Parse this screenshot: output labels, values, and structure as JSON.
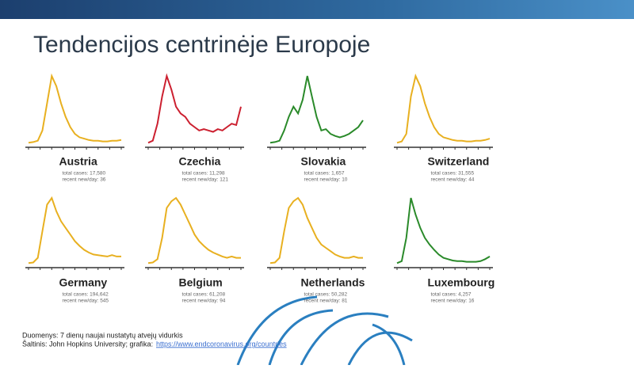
{
  "title": "Tendencijos centrinėje Europoje",
  "panels": [
    {
      "name": "Austria",
      "total_cases": "total cases: 17,580",
      "recent": "recent new/day: 36",
      "color": "#e8b020",
      "values": [
        2,
        3,
        5,
        20,
        60,
        100,
        85,
        60,
        40,
        25,
        15,
        10,
        8,
        6,
        5,
        5,
        4,
        4,
        5,
        5,
        6
      ]
    },
    {
      "name": "Czechia",
      "total_cases": "total cases: 11,298",
      "recent": "recent new/day: 121",
      "color": "#cc2030",
      "values": [
        2,
        5,
        30,
        70,
        100,
        80,
        55,
        45,
        40,
        30,
        25,
        20,
        22,
        20,
        18,
        22,
        20,
        25,
        30,
        28,
        55
      ]
    },
    {
      "name": "Slovakia",
      "total_cases": "total cases: 1,657",
      "recent": "recent new/day: 10",
      "color": "#2a8a2a",
      "values": [
        2,
        3,
        5,
        20,
        40,
        55,
        45,
        65,
        100,
        70,
        40,
        20,
        22,
        15,
        12,
        10,
        12,
        15,
        20,
        25,
        35
      ]
    },
    {
      "name": "Switzerland",
      "total_cases": "total cases: 31,555",
      "recent": "recent new/day: 44",
      "color": "#e8b020",
      "values": [
        2,
        4,
        15,
        70,
        100,
        85,
        60,
        40,
        25,
        15,
        10,
        8,
        6,
        5,
        5,
        4,
        4,
        5,
        5,
        6,
        8
      ]
    },
    {
      "name": "Germany",
      "total_cases": "total cases: 194,642",
      "recent": "recent new/day: 545",
      "color": "#e8b020",
      "values": [
        2,
        3,
        10,
        50,
        90,
        100,
        80,
        65,
        55,
        45,
        35,
        28,
        22,
        18,
        15,
        14,
        13,
        12,
        14,
        12,
        12
      ]
    },
    {
      "name": "Belgium",
      "total_cases": "total cases: 61,208",
      "recent": "recent new/day: 94",
      "color": "#e8b020",
      "values": [
        2,
        3,
        8,
        40,
        85,
        95,
        100,
        90,
        75,
        60,
        45,
        35,
        28,
        22,
        18,
        15,
        12,
        10,
        12,
        10,
        10
      ]
    },
    {
      "name": "Netherlands",
      "total_cases": "total cases: 50,282",
      "recent": "recent new/day: 81",
      "color": "#e8b020",
      "values": [
        2,
        3,
        10,
        50,
        85,
        95,
        100,
        90,
        70,
        55,
        40,
        30,
        25,
        20,
        15,
        12,
        10,
        10,
        12,
        10,
        10
      ]
    },
    {
      "name": "Luxembourg",
      "total_cases": "total cases: 4,257",
      "recent": "recent new/day: 16",
      "color": "#2a8a2a",
      "values": [
        2,
        5,
        40,
        100,
        75,
        55,
        40,
        30,
        22,
        15,
        10,
        8,
        6,
        5,
        5,
        4,
        4,
        4,
        5,
        8,
        12
      ]
    }
  ],
  "footer": {
    "note": "Duomenys: 7 dienų naujai nustatytų atvejų vidurkis",
    "credit": "Šaltinis: John Hopkins University; grafika:",
    "link": "https://www.endcoronavirus.org/countries"
  }
}
